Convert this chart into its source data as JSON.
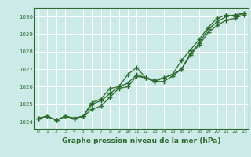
{
  "title": "Graphe pression niveau de la mer (hPa)",
  "bg_color": "#cceae8",
  "grid_color": "#ffffff",
  "line_color": "#2d6a2d",
  "xlim": [
    -0.5,
    23.5
  ],
  "ylim": [
    1023.6,
    1030.5
  ],
  "yticks": [
    1024,
    1025,
    1026,
    1027,
    1028,
    1029,
    1030
  ],
  "xticks": [
    0,
    1,
    2,
    3,
    4,
    5,
    6,
    7,
    8,
    9,
    10,
    11,
    12,
    13,
    14,
    15,
    16,
    17,
    18,
    19,
    20,
    21,
    22,
    23
  ],
  "series1_x": [
    0,
    1,
    2,
    3,
    4,
    5,
    6,
    7,
    8,
    9,
    10,
    11,
    12,
    13,
    14,
    15,
    16,
    17,
    18,
    19,
    20,
    21,
    22,
    23
  ],
  "series1_y": [
    1024.2,
    1024.3,
    1024.1,
    1024.3,
    1024.2,
    1024.3,
    1025.1,
    1025.3,
    1025.9,
    1026.0,
    1026.2,
    1026.7,
    1026.5,
    1026.4,
    1026.5,
    1026.7,
    1027.0,
    1027.8,
    1028.4,
    1029.1,
    1029.5,
    1029.8,
    1029.9,
    1030.1
  ],
  "series2_x": [
    0,
    1,
    2,
    3,
    4,
    5,
    6,
    7,
    8,
    9,
    10,
    11,
    12,
    13,
    14,
    15,
    16,
    17,
    18,
    19,
    20,
    21,
    22,
    23
  ],
  "series2_y": [
    1024.2,
    1024.3,
    1024.1,
    1024.3,
    1024.2,
    1024.3,
    1024.7,
    1024.9,
    1025.4,
    1025.9,
    1026.0,
    1026.6,
    1026.5,
    1026.3,
    1026.3,
    1026.6,
    1027.0,
    1027.9,
    1028.5,
    1029.3,
    1029.7,
    1030.0,
    1030.1,
    1030.2
  ],
  "series3_x": [
    0,
    1,
    2,
    3,
    4,
    5,
    6,
    7,
    8,
    9,
    10,
    11,
    12,
    13,
    14,
    15,
    16,
    17,
    18,
    19,
    20,
    21,
    22,
    23
  ],
  "series3_y": [
    1024.2,
    1024.3,
    1024.1,
    1024.3,
    1024.2,
    1024.3,
    1025.0,
    1025.2,
    1025.6,
    1026.0,
    1026.7,
    1027.1,
    1026.5,
    1026.3,
    1026.5,
    1026.7,
    1027.5,
    1028.1,
    1028.7,
    1029.4,
    1029.9,
    1030.1,
    1030.0,
    1030.2
  ],
  "ylabel_fontsize": 5.5,
  "xlabel_fontsize": 6.5,
  "tick_fontsize": 5.0
}
